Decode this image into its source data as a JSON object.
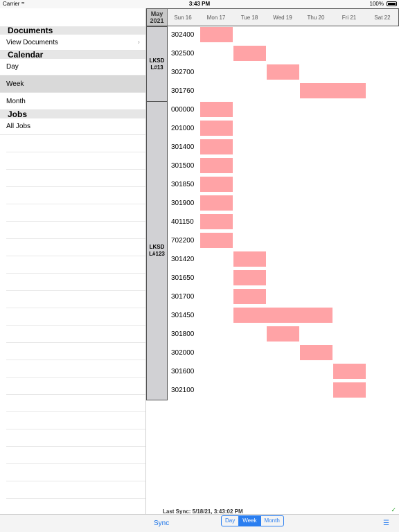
{
  "status": {
    "carrier": "Carrier",
    "time": "3:43 PM",
    "battery": "100%"
  },
  "sidebar": {
    "sections": {
      "documents": "Documents",
      "view_documents": "View Documents",
      "calendar": "Calendar",
      "day": "Day",
      "week": "Week",
      "month": "Month",
      "jobs": "Jobs",
      "all_jobs": "All Jobs"
    }
  },
  "schedule": {
    "month": "May",
    "year": "2021",
    "days": [
      "Sun 16",
      "Mon 17",
      "Tue 18",
      "Wed 19",
      "Thu 20",
      "Fri 21",
      "Sat 22"
    ],
    "groups": [
      {
        "label": "LKSD L#13",
        "jobs": [
          {
            "id": "302400",
            "start": 1,
            "span": 1
          },
          {
            "id": "302500",
            "start": 2,
            "span": 1
          },
          {
            "id": "302700",
            "start": 3,
            "span": 1
          },
          {
            "id": "301760",
            "start": 4,
            "span": 2
          }
        ]
      },
      {
        "label": "LKSD L#123",
        "jobs": [
          {
            "id": "000000",
            "start": 1,
            "span": 1
          },
          {
            "id": "201000",
            "start": 1,
            "span": 1
          },
          {
            "id": "301400",
            "start": 1,
            "span": 1
          },
          {
            "id": "301500",
            "start": 1,
            "span": 1
          },
          {
            "id": "301850",
            "start": 1,
            "span": 1
          },
          {
            "id": "301900",
            "start": 1,
            "span": 1
          },
          {
            "id": "401150",
            "start": 1,
            "span": 1
          },
          {
            "id": "702200",
            "start": 1,
            "span": 1
          },
          {
            "id": "301420",
            "start": 2,
            "span": 1
          },
          {
            "id": "301650",
            "start": 2,
            "span": 1
          },
          {
            "id": "301700",
            "start": 2,
            "span": 1
          },
          {
            "id": "301450",
            "start": 2,
            "span": 3
          },
          {
            "id": "301800",
            "start": 3,
            "span": 1
          },
          {
            "id": "302000",
            "start": 4,
            "span": 1
          },
          {
            "id": "301600",
            "start": 5,
            "span": 1
          },
          {
            "id": "302100",
            "start": 5,
            "span": 1
          }
        ]
      }
    ],
    "bar_color": "#ffa3a6"
  },
  "footer": {
    "last_sync": "Last Sync: 5/18/21, 3:43:02 PM",
    "sync": "Sync",
    "seg_day": "Day",
    "seg_week": "Week",
    "seg_month": "Month",
    "accent": "#2a7ef0"
  }
}
